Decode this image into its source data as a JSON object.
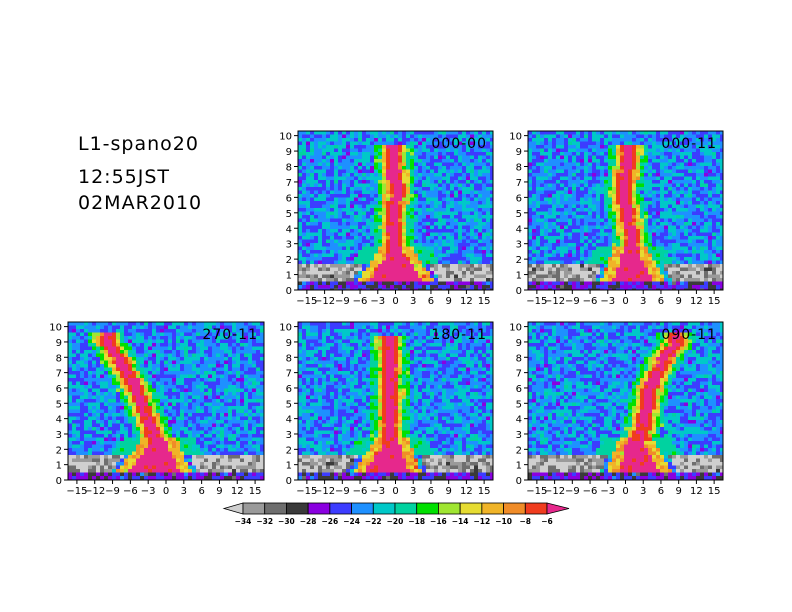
{
  "header": {
    "site": "L1-spano20",
    "time": "12:55JST",
    "date": "02MAR2010"
  },
  "chart_data": {
    "type": "heatmap",
    "x_ticks": [
      -15,
      -12,
      -9,
      -6,
      -3,
      0,
      3,
      6,
      9,
      12,
      15
    ],
    "y_ticks": [
      0,
      1,
      2,
      3,
      4,
      5,
      6,
      7,
      8,
      9,
      10
    ],
    "xlim": [
      -16.5,
      16.5
    ],
    "ylim": [
      0,
      10.3
    ],
    "panels": [
      {
        "label": "000-00",
        "plume": [
          [
            0,
            0.7
          ],
          [
            0,
            2.0
          ],
          [
            -0.3,
            3.0
          ],
          [
            -0.4,
            4.5
          ],
          [
            -0.3,
            5.5
          ],
          [
            0.2,
            6.2
          ],
          [
            -0.4,
            8.8
          ]
        ],
        "base_left": -3.5,
        "base_right": 3.5
      },
      {
        "label": "000-11",
        "plume": [
          [
            0.5,
            0.7
          ],
          [
            0.5,
            2.0
          ],
          [
            1.0,
            3.0
          ],
          [
            0.6,
            4.5
          ],
          [
            0.0,
            5.5
          ],
          [
            -0.6,
            6.2
          ],
          [
            0.5,
            8.8
          ]
        ],
        "base_left": -2.0,
        "base_right": 3.5
      },
      {
        "label": "270-11",
        "plume": [
          [
            -1.0,
            0.7
          ],
          [
            -1.2,
            2.0
          ],
          [
            -2.5,
            3.5
          ],
          [
            -3.8,
            4.8
          ],
          [
            -5.0,
            6.0
          ],
          [
            -8.0,
            8.0
          ],
          [
            -10.0,
            9.0
          ]
        ],
        "base_left": -4.5,
        "base_right": 2.5
      },
      {
        "label": "180-11",
        "plume": [
          [
            -0.5,
            0.7
          ],
          [
            -0.5,
            2.0
          ],
          [
            -1.0,
            3.0
          ],
          [
            -1.0,
            4.5
          ],
          [
            -0.8,
            5.8
          ],
          [
            -1.0,
            6.8
          ],
          [
            -1.2,
            8.8
          ]
        ],
        "base_left": -4.0,
        "base_right": 2.0
      },
      {
        "label": "090-11",
        "plume": [
          [
            1.5,
            0.7
          ],
          [
            1.5,
            2.0
          ],
          [
            2.8,
            3.5
          ],
          [
            3.5,
            4.8
          ],
          [
            4.0,
            6.0
          ],
          [
            6.5,
            8.0
          ],
          [
            8.5,
            9.0
          ]
        ],
        "base_left": -2.0,
        "base_right": 3.5
      }
    ],
    "colorbar": {
      "labels": [
        -34,
        -32,
        -30,
        -28,
        -26,
        -24,
        -22,
        -20,
        -18,
        -16,
        -14,
        -12,
        -10,
        -8,
        -6
      ],
      "colors": [
        "#cfcfcf",
        "#9a9a9a",
        "#6e6e6e",
        "#3a3a3a",
        "#8a00e0",
        "#3c3cff",
        "#1e90ff",
        "#00c8c8",
        "#00d2a0",
        "#00e000",
        "#a0e632",
        "#e6dc32",
        "#f0b428",
        "#f08c28",
        "#f03c1e",
        "#e6288c"
      ]
    }
  }
}
